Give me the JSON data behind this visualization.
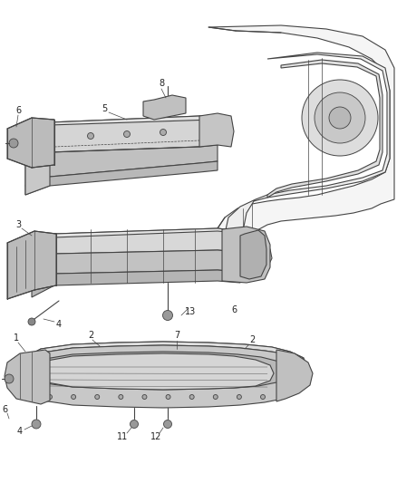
{
  "bg_color": "#ffffff",
  "line_color": "#444444",
  "label_color": "#222222",
  "figsize": [
    4.38,
    5.33
  ],
  "dpi": 100,
  "label_fs": 7.0
}
